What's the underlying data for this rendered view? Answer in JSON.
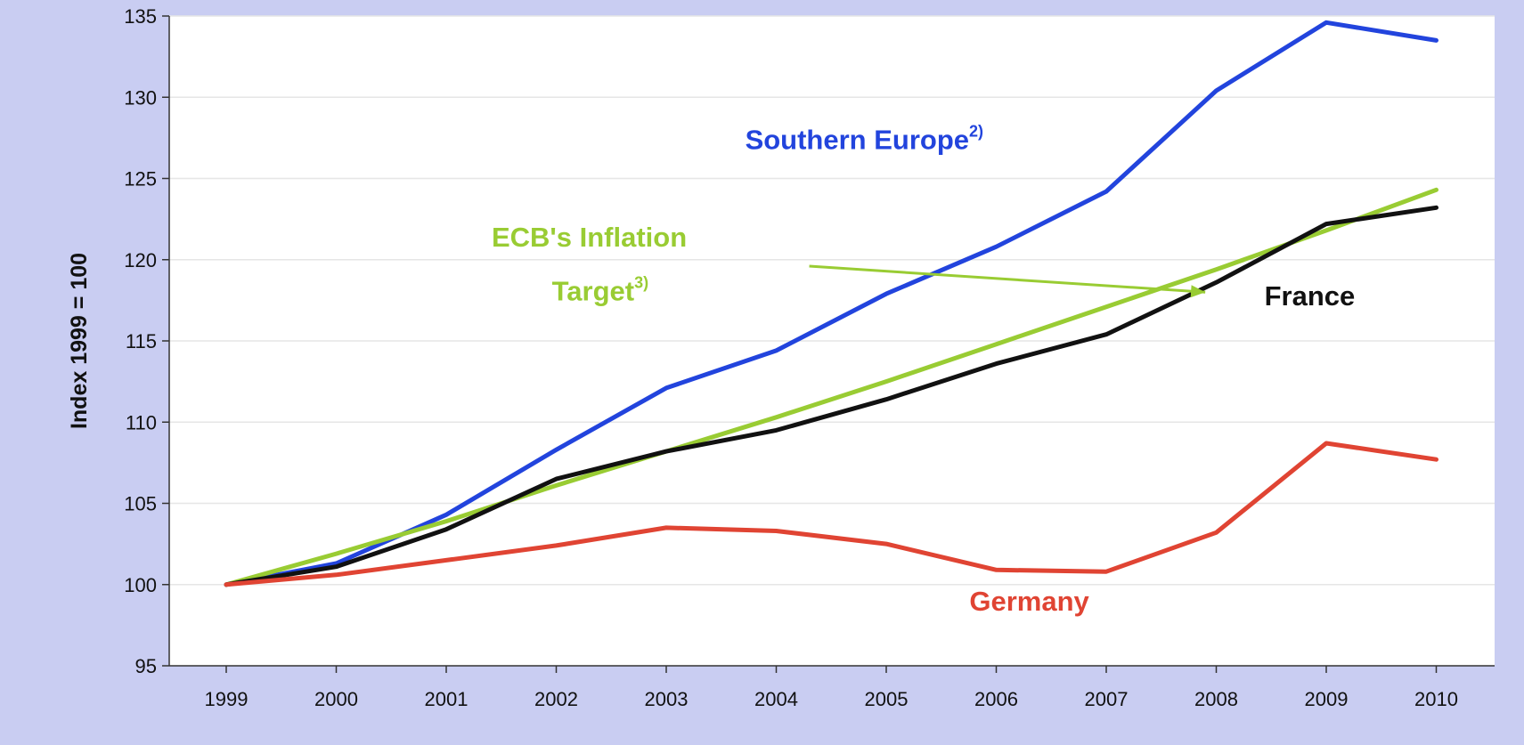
{
  "chart_data": {
    "type": "line",
    "title": "",
    "xlabel": "",
    "ylabel": "Index 1999 = 100",
    "x": [
      "1999",
      "2000",
      "2001",
      "2002",
      "2003",
      "2004",
      "2005",
      "2006",
      "2007",
      "2008",
      "2009",
      "2010"
    ],
    "ylim": [
      95,
      135
    ],
    "yticks": [
      95,
      100,
      105,
      110,
      115,
      120,
      125,
      130,
      135
    ],
    "grid": true,
    "legend": "none",
    "series": [
      {
        "name": "Southern Europe",
        "color": "#2244dd",
        "values": [
          100,
          101.3,
          104.3,
          108.3,
          112.1,
          114.4,
          117.9,
          120.8,
          124.2,
          130.4,
          134.6,
          133.5
        ]
      },
      {
        "name": "ECB's Inflation Target",
        "color": "#99cc33",
        "values": [
          100,
          101.9,
          103.9,
          106.1,
          108.2,
          110.3,
          112.5,
          114.8,
          117.1,
          119.4,
          121.8,
          124.3
        ]
      },
      {
        "name": "France",
        "color": "#111111",
        "values": [
          100,
          101.1,
          103.4,
          106.5,
          108.2,
          109.5,
          111.4,
          113.6,
          115.4,
          118.6,
          122.2,
          123.2
        ]
      },
      {
        "name": "Germany",
        "color": "#e04433",
        "values": [
          100,
          100.6,
          101.5,
          102.4,
          103.5,
          103.3,
          102.5,
          100.9,
          100.8,
          103.2,
          108.7,
          107.7
        ]
      }
    ],
    "annotations": [
      {
        "name": "label-southern-europe",
        "text": "Southern Europe",
        "sup": "2)",
        "color": "#2244dd",
        "x": 2004.8,
        "y": 126.8
      },
      {
        "name": "label-ecb-line1",
        "text": "ECB's Inflation",
        "sup": "",
        "color": "#99cc33",
        "x": 2002.3,
        "y": 120.8
      },
      {
        "name": "label-ecb-line2",
        "text": "Target",
        "sup": "3)",
        "color": "#99cc33",
        "x": 2002.4,
        "y": 117.5
      },
      {
        "name": "label-france",
        "text": "France",
        "sup": "",
        "color": "#111111",
        "x": 2008.85,
        "y": 117.2
      },
      {
        "name": "label-germany",
        "text": "Germany",
        "sup": "",
        "color": "#e04433",
        "x": 2006.3,
        "y": 98.4
      }
    ],
    "arrow": {
      "color": "#99cc33",
      "from": [
        2004.3,
        119.6
      ],
      "to": [
        2007.9,
        118.0
      ]
    }
  }
}
